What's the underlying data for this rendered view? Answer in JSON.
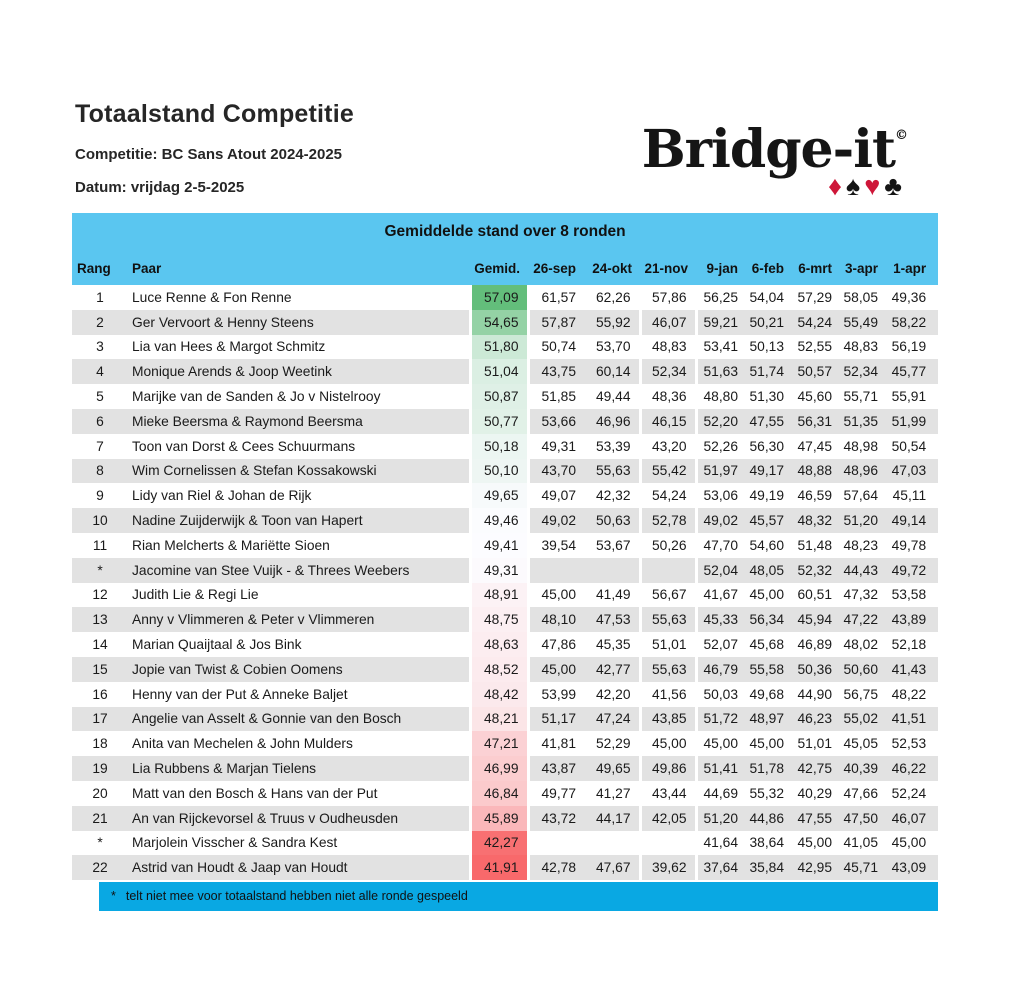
{
  "page": {
    "title": "Totaalstand Competitie",
    "competition_label": "Competitie: BC Sans Atout 2024-2025",
    "date_label": "Datum: vrijdag 2-5-2025"
  },
  "logo": {
    "text": "Bridge-it",
    "trademark": "©",
    "suits": [
      {
        "name": "diamond-icon",
        "char": "♦",
        "color": "#CE1638"
      },
      {
        "name": "spade-icon",
        "char": "♠",
        "color": "#151515"
      },
      {
        "name": "heart-icon",
        "char": "♥",
        "color": "#CE1638"
      },
      {
        "name": "club-icon",
        "char": "♣",
        "color": "#151515"
      }
    ]
  },
  "colors": {
    "header_blue": "#5AC6F0",
    "footer_blue": "#09A8E3",
    "row_alt_gray": "#E2E2E2"
  },
  "table": {
    "title": "Gemiddelde stand over 8 ronden",
    "columns": [
      "Rang",
      "Paar",
      "Gemid.",
      "26-sep",
      "24-okt",
      "21-nov",
      "9-jan",
      "6-feb",
      "6-mrt",
      "3-apr",
      "1-apr"
    ],
    "color_scale": {
      "min": 41.91,
      "mid": 49.4,
      "max": 57.09,
      "min_color": "#F8696B",
      "mid_color": "#FCFCFF",
      "max_color": "#63BE7B"
    },
    "rows": [
      {
        "rang": "1",
        "paar": "Luce Renne & Fon Renne",
        "gemid": "57,09",
        "scores": [
          "61,57",
          "62,26",
          "57,86",
          "56,25",
          "54,04",
          "57,29",
          "58,05",
          "49,36"
        ]
      },
      {
        "rang": "2",
        "paar": "Ger Vervoort & Henny Steens",
        "gemid": "54,65",
        "scores": [
          "57,87",
          "55,92",
          "46,07",
          "59,21",
          "50,21",
          "54,24",
          "55,49",
          "58,22"
        ]
      },
      {
        "rang": "3",
        "paar": "Lia van  Hees & Margot Schmitz",
        "gemid": "51,80",
        "scores": [
          "50,74",
          "53,70",
          "48,83",
          "53,41",
          "50,13",
          "52,55",
          "48,83",
          "56,19"
        ]
      },
      {
        "rang": "4",
        "paar": "Monique Arends & Joop Weetink",
        "gemid": "51,04",
        "scores": [
          "43,75",
          "60,14",
          "52,34",
          "51,63",
          "51,74",
          "50,57",
          "52,34",
          "45,77"
        ]
      },
      {
        "rang": "5",
        "paar": "Marijke van de Sanden & Jo v Nistelrooy",
        "gemid": "50,87",
        "scores": [
          "51,85",
          "49,44",
          "48,36",
          "48,80",
          "51,30",
          "45,60",
          "55,71",
          "55,91"
        ]
      },
      {
        "rang": "6",
        "paar": "Mieke Beersma & Raymond Beersma",
        "gemid": "50,77",
        "scores": [
          "53,66",
          "46,96",
          "46,15",
          "52,20",
          "47,55",
          "56,31",
          "51,35",
          "51,99"
        ]
      },
      {
        "rang": "7",
        "paar": "Toon van Dorst & Cees Schuurmans",
        "gemid": "50,18",
        "scores": [
          "49,31",
          "53,39",
          "43,20",
          "52,26",
          "56,30",
          "47,45",
          "48,98",
          "50,54"
        ]
      },
      {
        "rang": "8",
        "paar": "Wim Cornelissen & Stefan Kossakowski",
        "gemid": "50,10",
        "scores": [
          "43,70",
          "55,63",
          "55,42",
          "51,97",
          "49,17",
          "48,88",
          "48,96",
          "47,03"
        ]
      },
      {
        "rang": "9",
        "paar": "Lidy van Riel & Johan de Rijk",
        "gemid": "49,65",
        "scores": [
          "49,07",
          "42,32",
          "54,24",
          "53,06",
          "49,19",
          "46,59",
          "57,64",
          "45,11"
        ]
      },
      {
        "rang": "10",
        "paar": "Nadine Zuijderwijk & Toon van Hapert",
        "gemid": "49,46",
        "scores": [
          "49,02",
          "50,63",
          "52,78",
          "49,02",
          "45,57",
          "48,32",
          "51,20",
          "49,14"
        ]
      },
      {
        "rang": "11",
        "paar": "Rian Melcherts & Mariëtte Sioen",
        "gemid": "49,41",
        "scores": [
          "39,54",
          "53,67",
          "50,26",
          "47,70",
          "54,60",
          "51,48",
          "48,23",
          "49,78"
        ]
      },
      {
        "rang": "*",
        "paar": "Jacomine van Stee Vuijk - & Threes Weebers",
        "gemid": "49,31",
        "scores": [
          "",
          "",
          "",
          "52,04",
          "48,05",
          "52,32",
          "44,43",
          "49,72"
        ]
      },
      {
        "rang": "12",
        "paar": "Judith Lie & Regi Lie",
        "gemid": "48,91",
        "scores": [
          "45,00",
          "41,49",
          "56,67",
          "41,67",
          "45,00",
          "60,51",
          "47,32",
          "53,58"
        ]
      },
      {
        "rang": "13",
        "paar": "Anny v Vlimmeren & Peter v Vlimmeren",
        "gemid": "48,75",
        "scores": [
          "48,10",
          "47,53",
          "55,63",
          "45,33",
          "56,34",
          "45,94",
          "47,22",
          "43,89"
        ]
      },
      {
        "rang": "14",
        "paar": "Marian Quaijtaal & Jos Bink",
        "gemid": "48,63",
        "scores": [
          "47,86",
          "45,35",
          "51,01",
          "52,07",
          "45,68",
          "46,89",
          "48,02",
          "52,18"
        ]
      },
      {
        "rang": "15",
        "paar": "Jopie van Twist & Cobien Oomens",
        "gemid": "48,52",
        "scores": [
          "45,00",
          "42,77",
          "55,63",
          "46,79",
          "55,58",
          "50,36",
          "50,60",
          "41,43"
        ]
      },
      {
        "rang": "16",
        "paar": "Henny van der Put & Anneke Baljet",
        "gemid": "48,42",
        "scores": [
          "53,99",
          "42,20",
          "41,56",
          "50,03",
          "49,68",
          "44,90",
          "56,75",
          "48,22"
        ]
      },
      {
        "rang": "17",
        "paar": "Angelie van Asselt & Gonnie van den Bosch",
        "gemid": "48,21",
        "scores": [
          "51,17",
          "47,24",
          "43,85",
          "51,72",
          "48,97",
          "46,23",
          "55,02",
          "41,51"
        ]
      },
      {
        "rang": "18",
        "paar": "Anita van Mechelen & John Mulders",
        "gemid": "47,21",
        "scores": [
          "41,81",
          "52,29",
          "45,00",
          "45,00",
          "45,00",
          "51,01",
          "45,05",
          "52,53"
        ]
      },
      {
        "rang": "19",
        "paar": "Lia Rubbens & Marjan Tielens",
        "gemid": "46,99",
        "scores": [
          "43,87",
          "49,65",
          "49,86",
          "51,41",
          "51,78",
          "42,75",
          "40,39",
          "46,22"
        ]
      },
      {
        "rang": "20",
        "paar": "Matt van den Bosch & Hans van der Put",
        "gemid": "46,84",
        "scores": [
          "49,77",
          "41,27",
          "43,44",
          "44,69",
          "55,32",
          "40,29",
          "47,66",
          "52,24"
        ]
      },
      {
        "rang": "21",
        "paar": "An van Rijckevorsel & Truus v Oudheusden",
        "gemid": "45,89",
        "scores": [
          "43,72",
          "44,17",
          "42,05",
          "51,20",
          "44,86",
          "47,55",
          "47,50",
          "46,07"
        ]
      },
      {
        "rang": "*",
        "paar": "Marjolein Visscher & Sandra Kest",
        "gemid": "42,27",
        "scores": [
          "",
          "",
          "",
          "41,64",
          "38,64",
          "45,00",
          "41,05",
          "45,00"
        ]
      },
      {
        "rang": "22",
        "paar": "Astrid van Houdt & Jaap van  Houdt",
        "gemid": "41,91",
        "scores": [
          "42,78",
          "47,67",
          "39,62",
          "37,64",
          "35,84",
          "42,95",
          "45,71",
          "43,09"
        ]
      }
    ]
  },
  "footer": {
    "note_symbol": "*",
    "note": "telt niet mee voor totaalstand hebben niet alle ronde gespeeld"
  }
}
